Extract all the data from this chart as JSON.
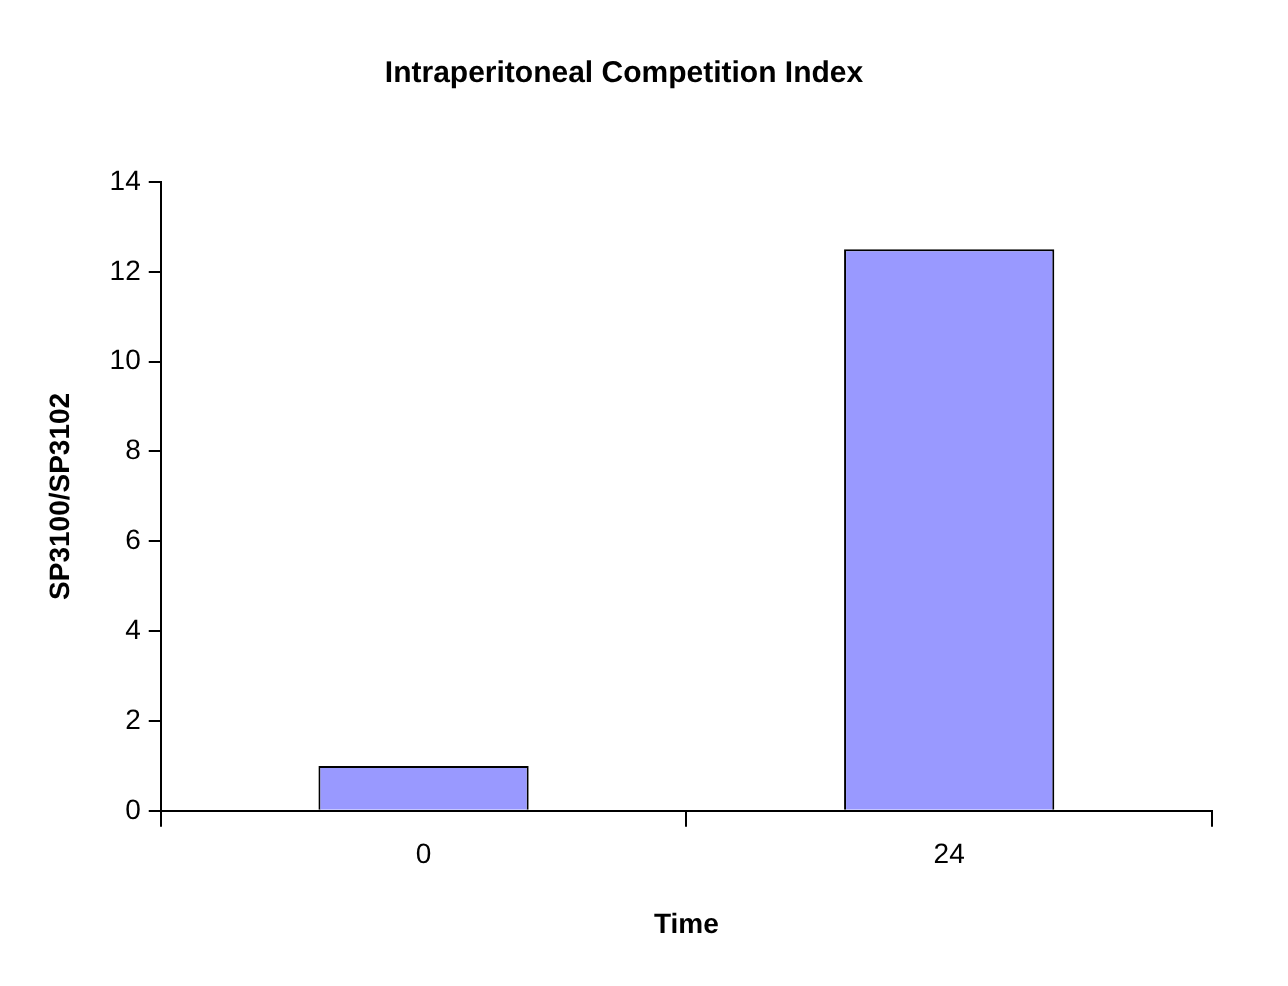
{
  "chart_data": {
    "type": "bar",
    "title": "Intraperitoneal Competition Index",
    "xlabel": "Time",
    "ylabel": "SP3100/SP3102",
    "categories": [
      "0",
      "24"
    ],
    "values": [
      1,
      12.5
    ],
    "color": "#9999ff",
    "ylim": [
      0,
      14
    ],
    "yticks": [
      0,
      2,
      4,
      6,
      8,
      10,
      12,
      14
    ],
    "grid": false,
    "legend": false
  }
}
